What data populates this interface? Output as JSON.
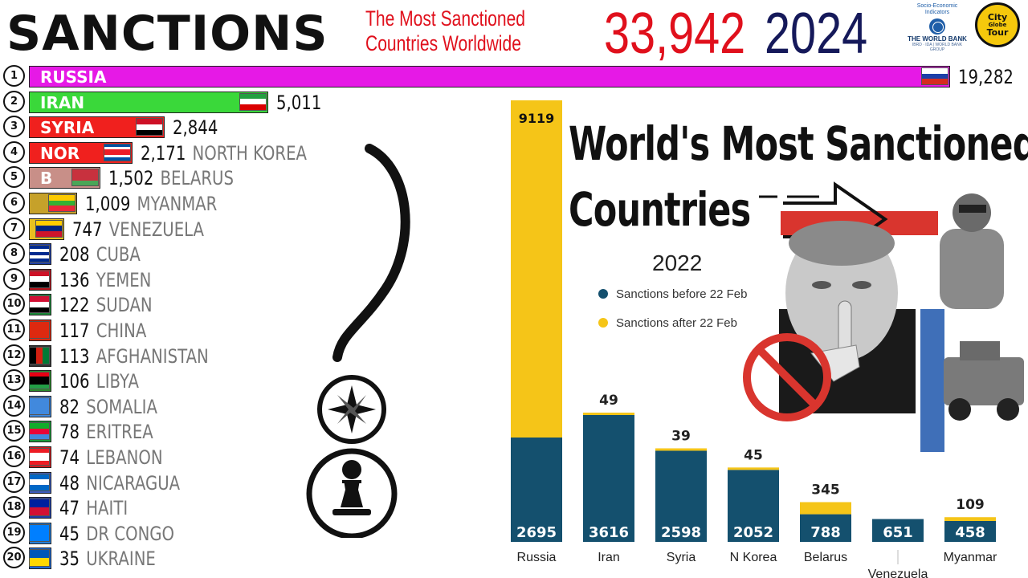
{
  "header": {
    "title": "SANCTIONS",
    "subtitle": [
      "The Most Sanctioned",
      "Countries Worldwide"
    ],
    "total": "33,942",
    "year": "2024",
    "world_bank": {
      "line1": "Socio-Economic",
      "line2": "Indicators",
      "name": "THE WORLD BANK",
      "small": "IBRD · IDA | WORLD BANK GROUP"
    },
    "logo_text": [
      "City",
      "Globe",
      "Tour"
    ]
  },
  "colors": {
    "title": "#111111",
    "subtitle": "#e0101c",
    "total": "#e0101c",
    "year": "#15195a",
    "before": "#14506e",
    "after": "#f5c518"
  },
  "chart_data": [
    {
      "type": "bar",
      "orientation": "horizontal",
      "title": "SANCTIONS",
      "ranks": [
        1,
        2,
        3,
        4,
        5,
        6,
        7,
        8,
        9,
        10,
        11,
        12,
        13,
        14,
        15,
        16,
        17,
        18,
        19,
        20
      ],
      "categories": [
        "RUSSIA",
        "IRAN",
        "SYRIA",
        "NORTH KOREA",
        "BELARUS",
        "MYANMAR",
        "VENEZUELA",
        "CUBA",
        "YEMEN",
        "SUDAN",
        "CHINA",
        "AFGHANISTAN",
        "LIBYA",
        "SOMALIA",
        "ERITREA",
        "LEBANON",
        "NICARAGUA",
        "HAITI",
        "DR CONGO",
        "UKRAINE"
      ],
      "values": [
        19282,
        5011,
        2844,
        2171,
        1502,
        1009,
        747,
        208,
        136,
        122,
        117,
        113,
        106,
        82,
        78,
        74,
        48,
        47,
        45,
        35
      ],
      "value_labels": [
        "19,282",
        "5,011",
        "2,844",
        "2,171",
        "1,502",
        "1,009",
        "747",
        "208",
        "136",
        "122",
        "117",
        "113",
        "106",
        "82",
        "78",
        "74",
        "48",
        "47",
        "45",
        "35"
      ],
      "bar_labels": [
        "RUSSIA",
        "IRAN",
        "SYRIA",
        "NOR",
        "B",
        "",
        "",
        "",
        "",
        "",
        "",
        "",
        "",
        "",
        "",
        "",
        "",
        "",
        "",
        ""
      ],
      "outside_names": [
        "",
        "",
        "",
        "NORTH KOREA",
        "BELARUS",
        "MYANMAR",
        "VENEZUELA",
        "CUBA",
        "YEMEN",
        "SUDAN",
        "CHINA",
        "AFGHANISTAN",
        "LIBYA",
        "SOMALIA",
        "ERITREA",
        "LEBANON",
        "NICARAGUA",
        "HAITI",
        "DR CONGO",
        "UKRAINE"
      ],
      "bar_colors": [
        "#e619e6",
        "#3ad83a",
        "#f0201e",
        "#f0201e",
        "#c88f88",
        "#c6a12a",
        "#e8c020",
        "#1e3fa8",
        "#b5121b",
        "#1c8a3a",
        "#de2910",
        "#333333",
        "#2a8b2a",
        "#4189dd",
        "#1b9d3b",
        "#d01c1f",
        "#3a5cc0",
        "#1e3fa8",
        "#2a80d8",
        "#1e6bd6"
      ],
      "flags": [
        "russia-flag",
        "iran-flag",
        "syria-flag",
        "north-korea-flag",
        "belarus-flag",
        "myanmar-flag",
        "venezuela-flag",
        "cuba-flag",
        "yemen-flag",
        "sudan-flag",
        "china-flag",
        "afghanistan-flag",
        "libya-flag",
        "somalia-flag",
        "eritrea-flag",
        "lebanon-flag",
        "nicaragua-flag",
        "haiti-flag",
        "dr-congo-flag",
        "ukraine-flag"
      ]
    },
    {
      "type": "bar",
      "stacked": true,
      "title": "World's Most Sanctioned Countries",
      "subtitle": "2022",
      "categories": [
        "Russia",
        "Iran",
        "Syria",
        "N Korea",
        "Belarus",
        "Venezuela",
        "Myanmar"
      ],
      "series": [
        {
          "name": "Sanctions before 22 Feb",
          "color": "#14506e",
          "values": [
            2695,
            3616,
            2598,
            2052,
            788,
            651,
            458
          ]
        },
        {
          "name": "Sanctions after 22 Feb",
          "color": "#f5c518",
          "values": [
            9119,
            49,
            39,
            45,
            345,
            null,
            109
          ]
        }
      ],
      "before_labels": [
        "2695",
        "3616",
        "2598",
        "2052",
        "788",
        "651",
        "458"
      ],
      "after_labels": [
        "9119",
        "49",
        "39",
        "45",
        "345",
        "",
        "109"
      ],
      "legend_position": "top-left",
      "grid": false
    }
  ]
}
